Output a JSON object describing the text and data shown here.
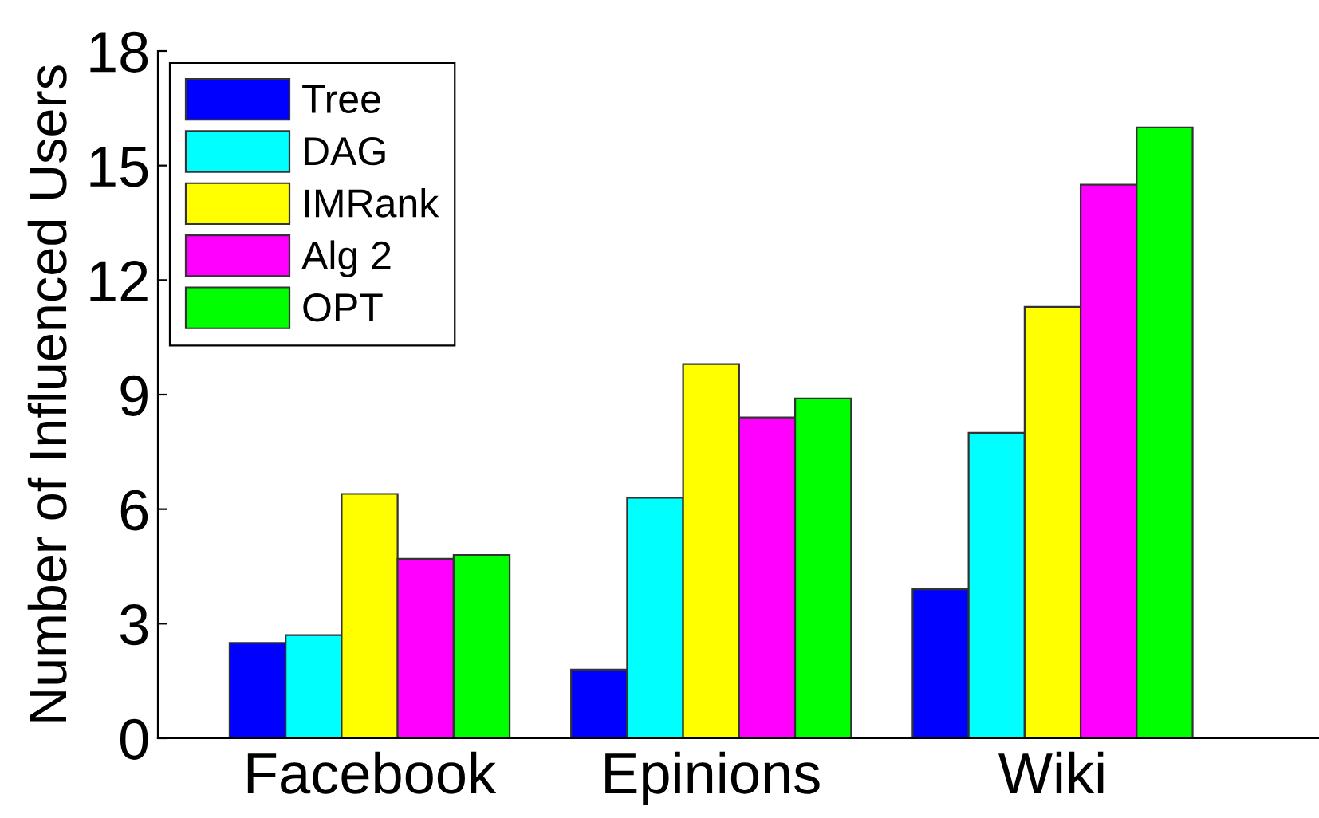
{
  "chart_data": {
    "type": "bar",
    "ylabel": "Number of Influenced Users",
    "categories": [
      "Facebook",
      "Epinions",
      "Wiki"
    ],
    "series": [
      {
        "name": "Tree",
        "color": "#0000ff",
        "values": [
          2.5,
          1.8,
          3.9
        ]
      },
      {
        "name": "DAG",
        "color": "#00ffff",
        "values": [
          2.7,
          6.3,
          8.0
        ]
      },
      {
        "name": "IMRank",
        "color": "#ffff00",
        "values": [
          6.4,
          9.8,
          11.3
        ]
      },
      {
        "name": "Alg 2",
        "color": "#ff00ff",
        "values": [
          4.7,
          8.4,
          14.5
        ]
      },
      {
        "name": "OPT",
        "color": "#00ff00",
        "values": [
          4.8,
          8.9,
          16.0
        ]
      }
    ],
    "ylim": [
      0,
      18
    ],
    "yticks": [
      0,
      3,
      6,
      9,
      12,
      15,
      18
    ],
    "legend": "top left",
    "grid": false
  }
}
